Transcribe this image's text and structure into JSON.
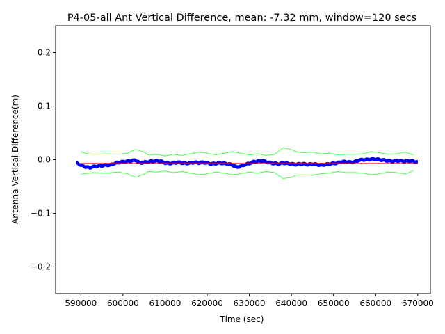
{
  "chart_data": {
    "type": "line",
    "title": "P4-05-all Ant Vertical Difference, mean: -7.32 mm, window=120 secs",
    "xlabel": "Time (sec)",
    "ylabel": "Antenna Vertical Difference(m)",
    "xlim": [
      584000,
      673000
    ],
    "ylim": [
      -0.25,
      0.25
    ],
    "x_ticks": [
      590000,
      600000,
      610000,
      620000,
      630000,
      640000,
      650000,
      660000,
      670000
    ],
    "x_tick_labels": [
      "590000",
      "600000",
      "610000",
      "620000",
      "630000",
      "640000",
      "650000",
      "660000",
      "670000"
    ],
    "y_ticks": [
      -0.2,
      -0.1,
      0.0,
      0.1,
      0.2
    ],
    "y_tick_labels": [
      "−0.2",
      "−0.1",
      "0.0",
      "0.1",
      "0.2"
    ],
    "grid": false,
    "series": [
      {
        "color": "#0000ff",
        "band": 0.004,
        "points": [
          [
            589000,
            -0.006
          ],
          [
            590000,
            -0.01
          ],
          [
            591000,
            -0.013
          ],
          [
            592000,
            -0.015
          ],
          [
            593000,
            -0.013
          ],
          [
            594000,
            -0.012
          ],
          [
            595000,
            -0.011
          ],
          [
            596000,
            -0.01
          ],
          [
            597000,
            -0.01
          ],
          [
            598000,
            -0.007
          ],
          [
            599000,
            -0.005
          ],
          [
            600000,
            -0.004
          ],
          [
            601000,
            -0.003
          ],
          [
            602000,
            -0.002
          ],
          [
            603000,
            -0.001
          ],
          [
            604000,
            -0.006
          ],
          [
            605000,
            -0.005
          ],
          [
            606000,
            -0.004
          ],
          [
            607000,
            -0.003
          ],
          [
            608000,
            -0.002
          ],
          [
            609000,
            -0.003
          ],
          [
            610000,
            -0.006
          ],
          [
            611000,
            -0.007
          ],
          [
            612000,
            -0.006
          ],
          [
            613000,
            -0.005
          ],
          [
            614000,
            -0.006
          ],
          [
            615000,
            -0.007
          ],
          [
            616000,
            -0.006
          ],
          [
            617000,
            -0.005
          ],
          [
            618000,
            -0.006
          ],
          [
            619000,
            -0.005
          ],
          [
            620000,
            -0.006
          ],
          [
            621000,
            -0.008
          ],
          [
            622000,
            -0.007
          ],
          [
            623000,
            -0.006
          ],
          [
            624000,
            -0.007
          ],
          [
            625000,
            -0.008
          ],
          [
            626000,
            -0.01
          ],
          [
            627000,
            -0.014
          ],
          [
            628000,
            -0.012
          ],
          [
            629000,
            -0.009
          ],
          [
            630000,
            -0.007
          ],
          [
            631000,
            -0.004
          ],
          [
            632000,
            -0.003
          ],
          [
            633000,
            -0.002
          ],
          [
            634000,
            -0.004
          ],
          [
            635000,
            -0.006
          ],
          [
            636000,
            -0.007
          ],
          [
            637000,
            -0.008
          ],
          [
            638000,
            -0.006
          ],
          [
            639000,
            -0.007
          ],
          [
            640000,
            -0.008
          ],
          [
            641000,
            -0.009
          ],
          [
            642000,
            -0.008
          ],
          [
            643000,
            -0.008
          ],
          [
            644000,
            -0.009
          ],
          [
            645000,
            -0.008
          ],
          [
            646000,
            -0.009
          ],
          [
            647000,
            -0.01
          ],
          [
            648000,
            -0.009
          ],
          [
            649000,
            -0.008
          ],
          [
            650000,
            -0.007
          ],
          [
            651000,
            -0.006
          ],
          [
            652000,
            -0.004
          ],
          [
            653000,
            -0.004
          ],
          [
            654000,
            -0.005
          ],
          [
            655000,
            -0.004
          ],
          [
            656000,
            -0.001
          ],
          [
            657000,
            0.0
          ],
          [
            658000,
            0.0
          ],
          [
            659000,
            0.001
          ],
          [
            660000,
            0.001
          ],
          [
            661000,
            0.0
          ],
          [
            662000,
            -0.001
          ],
          [
            663000,
            -0.002
          ],
          [
            664000,
            -0.003
          ],
          [
            665000,
            -0.002
          ],
          [
            666000,
            -0.002
          ],
          [
            667000,
            -0.003
          ],
          [
            668000,
            -0.002
          ],
          [
            669000,
            -0.003
          ],
          [
            670000,
            -0.005
          ]
        ]
      },
      {
        "color": "#ff0000",
        "points": [
          [
            590000,
            -0.007
          ],
          [
            670000,
            -0.007
          ]
        ]
      },
      {
        "color": "#33ff33",
        "points": [
          [
            590000,
            0.015
          ],
          [
            591000,
            0.012
          ],
          [
            593000,
            0.01
          ],
          [
            596000,
            0.011
          ],
          [
            599000,
            0.01
          ],
          [
            601000,
            0.012
          ],
          [
            603000,
            0.019
          ],
          [
            605000,
            0.014
          ],
          [
            606000,
            0.009
          ],
          [
            608000,
            0.01
          ],
          [
            610000,
            0.007
          ],
          [
            612000,
            0.01
          ],
          [
            614000,
            0.008
          ],
          [
            616000,
            0.011
          ],
          [
            618000,
            0.014
          ],
          [
            620000,
            0.012
          ],
          [
            622000,
            0.009
          ],
          [
            624000,
            0.012
          ],
          [
            626000,
            0.015
          ],
          [
            628000,
            0.012
          ],
          [
            630000,
            0.009
          ],
          [
            632000,
            0.011
          ],
          [
            634000,
            0.008
          ],
          [
            636000,
            0.01
          ],
          [
            638000,
            0.022
          ],
          [
            640000,
            0.019
          ],
          [
            641000,
            0.015
          ],
          [
            643000,
            0.013
          ],
          [
            645000,
            0.014
          ],
          [
            647000,
            0.011
          ],
          [
            649000,
            0.012
          ],
          [
            651000,
            0.009
          ],
          [
            653000,
            0.01
          ],
          [
            655000,
            0.01
          ],
          [
            657000,
            0.011
          ],
          [
            659000,
            0.015
          ],
          [
            661000,
            0.013
          ],
          [
            663000,
            0.01
          ],
          [
            665000,
            0.011
          ],
          [
            667000,
            0.014
          ],
          [
            669000,
            0.009
          ]
        ]
      },
      {
        "color": "#33ff33",
        "points": [
          [
            590000,
            -0.027
          ],
          [
            591000,
            -0.026
          ],
          [
            593000,
            -0.024
          ],
          [
            596000,
            -0.025
          ],
          [
            599000,
            -0.023
          ],
          [
            601000,
            -0.026
          ],
          [
            603000,
            -0.033
          ],
          [
            605000,
            -0.027
          ],
          [
            606000,
            -0.022
          ],
          [
            608000,
            -0.023
          ],
          [
            610000,
            -0.021
          ],
          [
            612000,
            -0.024
          ],
          [
            614000,
            -0.022
          ],
          [
            616000,
            -0.025
          ],
          [
            618000,
            -0.028
          ],
          [
            620000,
            -0.026
          ],
          [
            622000,
            -0.023
          ],
          [
            624000,
            -0.025
          ],
          [
            626000,
            -0.028
          ],
          [
            628000,
            -0.026
          ],
          [
            630000,
            -0.023
          ],
          [
            632000,
            -0.025
          ],
          [
            634000,
            -0.022
          ],
          [
            636000,
            -0.024
          ],
          [
            638000,
            -0.035
          ],
          [
            640000,
            -0.033
          ],
          [
            641000,
            -0.029
          ],
          [
            643000,
            -0.028
          ],
          [
            645000,
            -0.029
          ],
          [
            647000,
            -0.026
          ],
          [
            649000,
            -0.025
          ],
          [
            651000,
            -0.022
          ],
          [
            653000,
            -0.024
          ],
          [
            655000,
            -0.024
          ],
          [
            657000,
            -0.025
          ],
          [
            659000,
            -0.028
          ],
          [
            661000,
            -0.026
          ],
          [
            663000,
            -0.023
          ],
          [
            665000,
            -0.024
          ],
          [
            667000,
            -0.027
          ],
          [
            669000,
            -0.02
          ]
        ]
      }
    ]
  }
}
